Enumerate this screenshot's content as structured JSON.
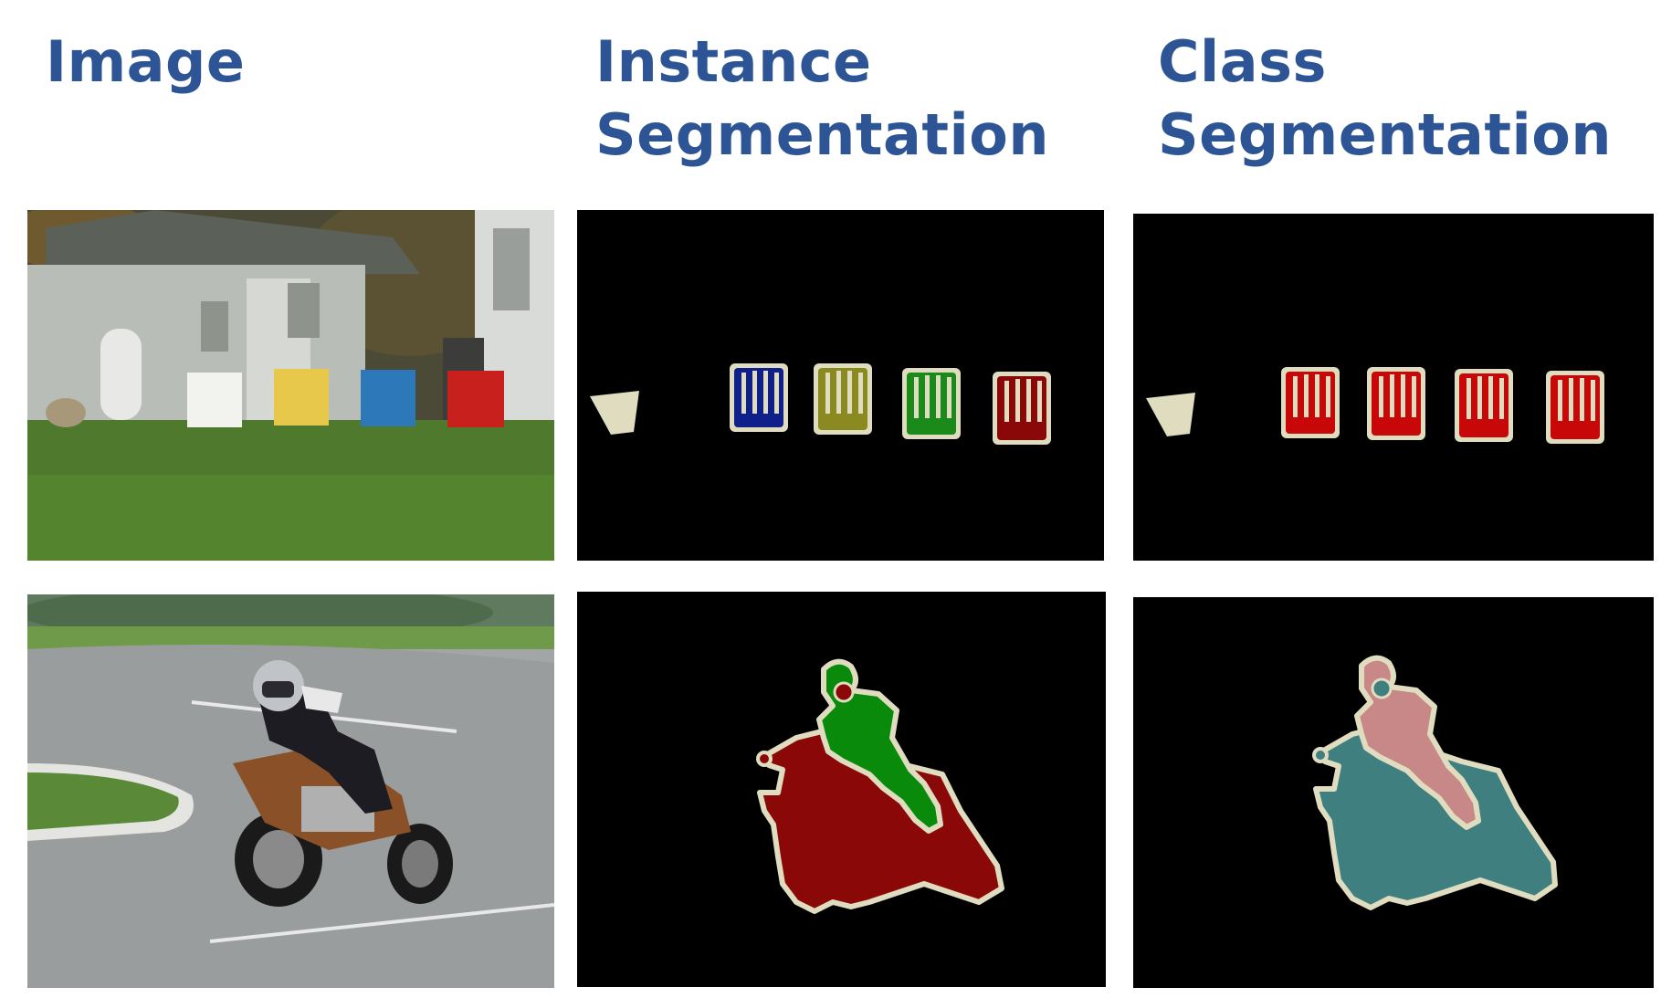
{
  "headers": {
    "image": "Image",
    "instance_line1": "Instance",
    "instance_line2": "Segmentation",
    "class_line1": "Class",
    "class_line2": "Segmentation"
  },
  "colors": {
    "header_text": "#2d5596",
    "mask_background": "#000000",
    "boundary": "#e0dcc0",
    "instance_chair_1": "#10208a",
    "instance_chair_2": "#8a8a20",
    "instance_chair_3": "#1a8a1a",
    "instance_chair_4": "#8a0808",
    "class_chair": "#c80808",
    "instance_motorbike": "#8a0808",
    "instance_person": "#0a8a0a",
    "class_motorbike": "#3f7f7f",
    "class_person": "#c88888",
    "class_other": "#e0dcc0"
  },
  "rows": [
    {
      "name": "chairs-row"
    },
    {
      "name": "motorbike-row"
    }
  ]
}
